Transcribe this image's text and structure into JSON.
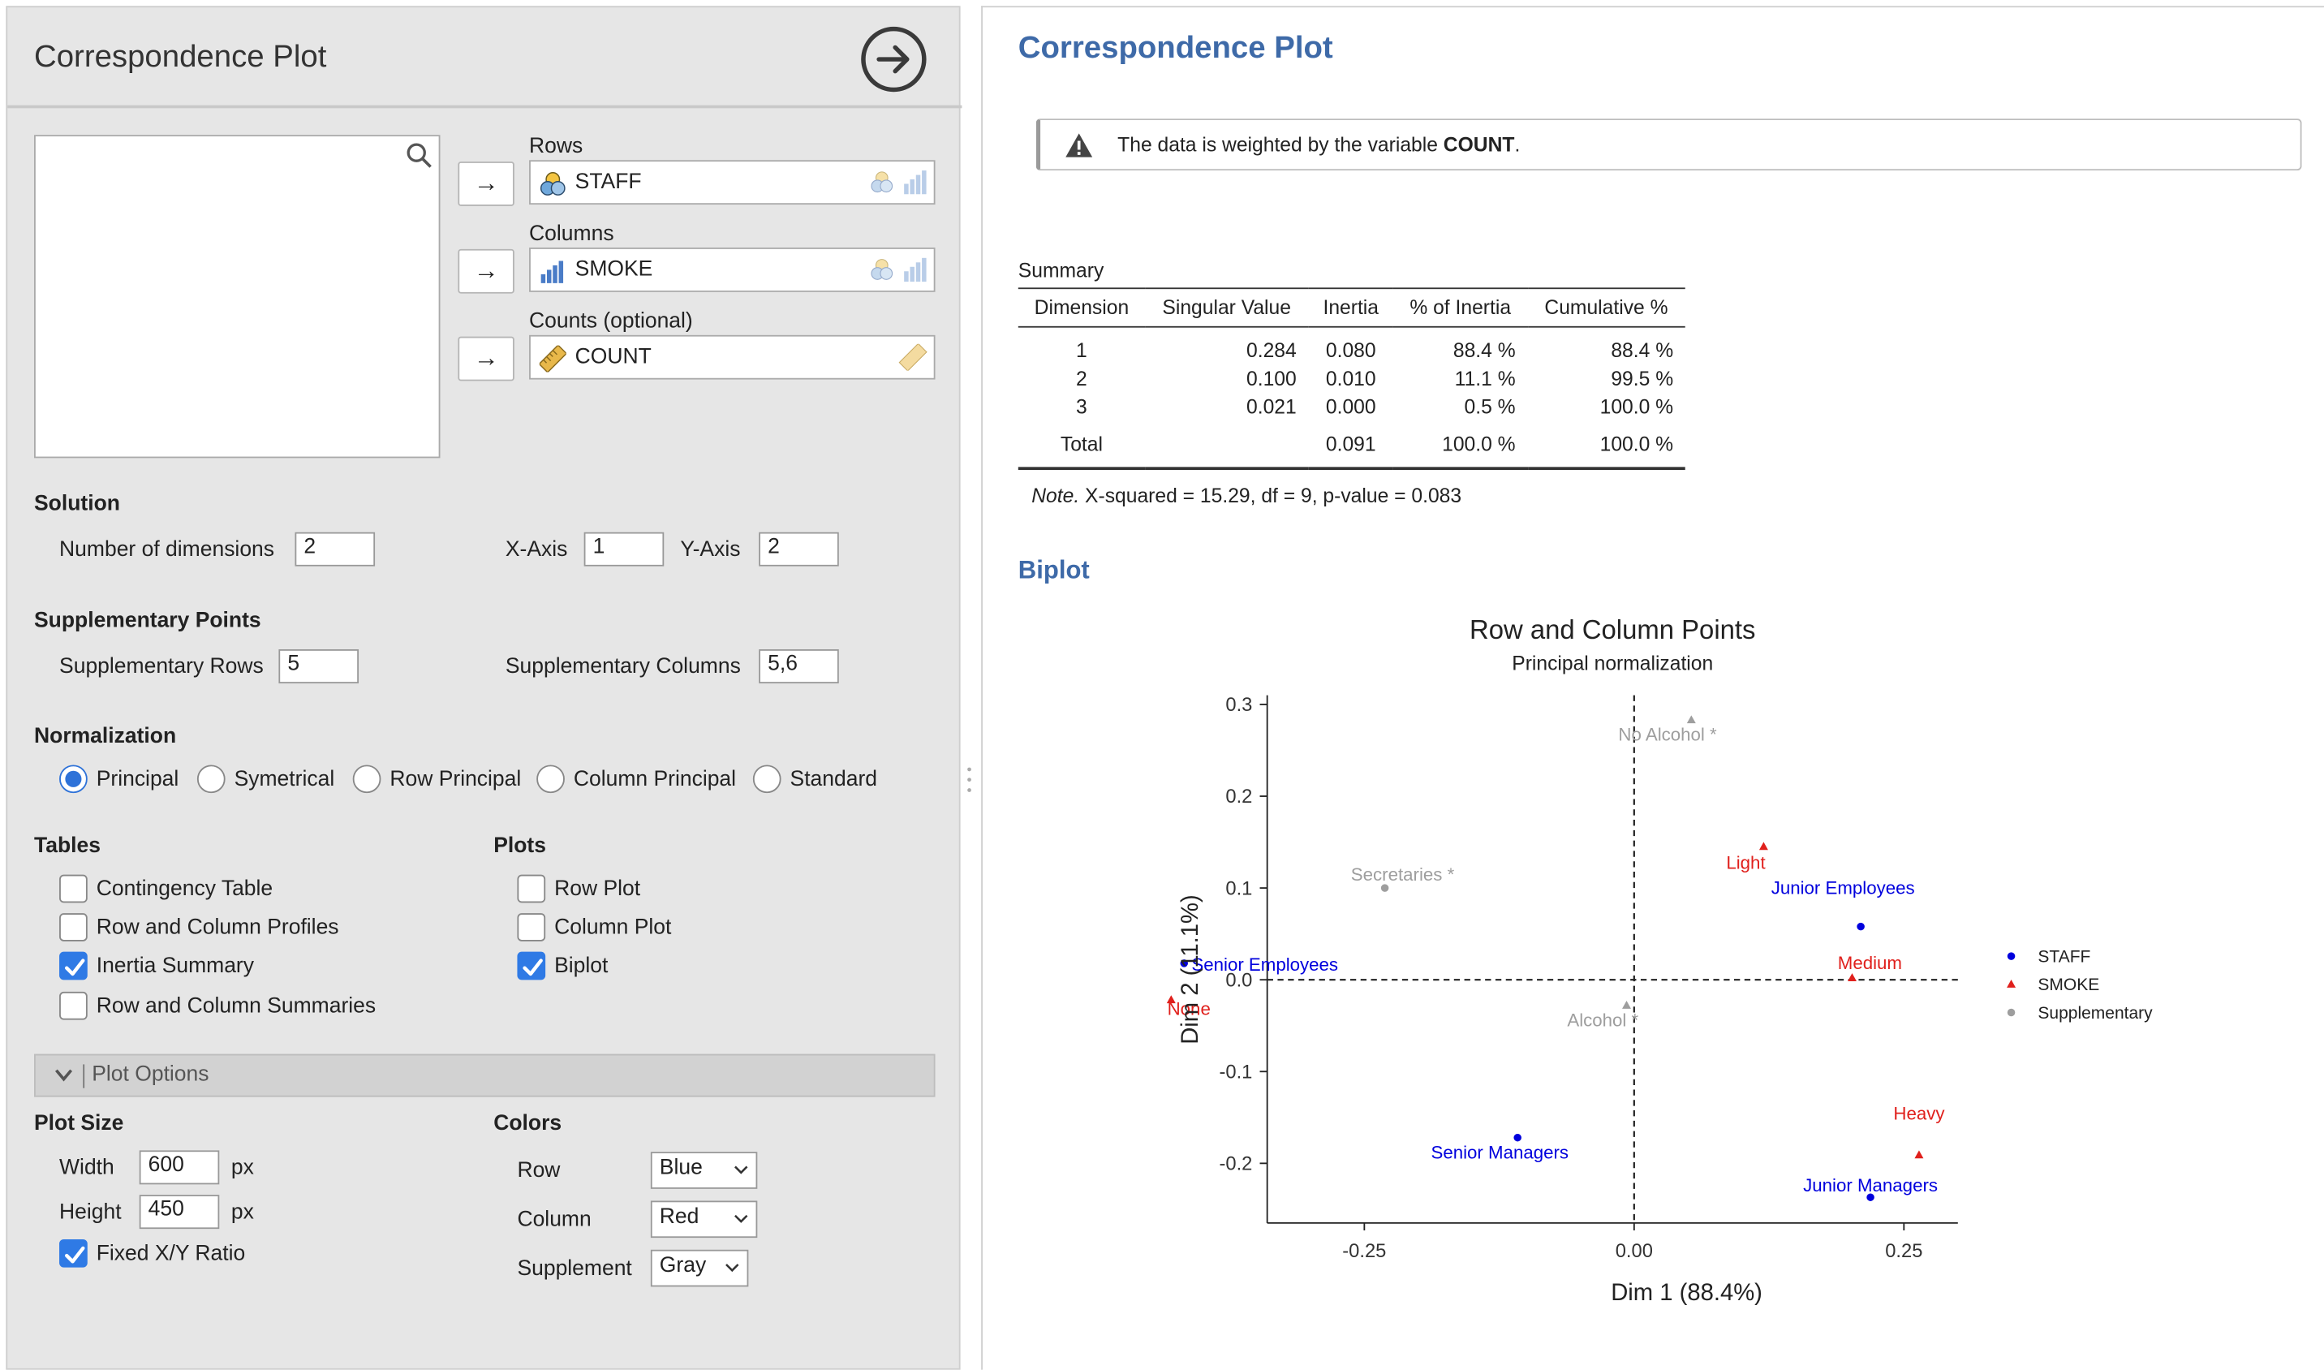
{
  "left_panel": {
    "title": "Correspondence Plot",
    "rows_label": "Rows",
    "rows_value": "STAFF",
    "columns_label": "Columns",
    "columns_value": "SMOKE",
    "counts_label": "Counts (optional)",
    "counts_value": "COUNT",
    "solution": {
      "heading": "Solution",
      "num_dims_label": "Number of dimensions",
      "num_dims_value": "2",
      "xaxis_label": "X-Axis",
      "xaxis_value": "1",
      "yaxis_label": "Y-Axis",
      "yaxis_value": "2"
    },
    "supplementary": {
      "heading": "Supplementary Points",
      "rows_label": "Supplementary Rows",
      "rows_value": "5",
      "cols_label": "Supplementary Columns",
      "cols_value": "5,6"
    },
    "normalization": {
      "heading": "Normalization",
      "options": [
        "Principal",
        "Symetrical",
        "Row Principal",
        "Column Principal",
        "Standard"
      ],
      "selected": "Principal"
    },
    "tables": {
      "heading": "Tables",
      "items": [
        {
          "label": "Contingency Table",
          "checked": false
        },
        {
          "label": "Row and Column Profiles",
          "checked": false
        },
        {
          "label": "Inertia Summary",
          "checked": true
        },
        {
          "label": "Row and Column Summaries",
          "checked": false
        }
      ]
    },
    "plots": {
      "heading": "Plots",
      "items": [
        {
          "label": "Row Plot",
          "checked": false
        },
        {
          "label": "Column Plot",
          "checked": false
        },
        {
          "label": "Biplot",
          "checked": true
        }
      ]
    },
    "plot_options": {
      "header": "Plot Options",
      "size_heading": "Plot Size",
      "width_label": "Width",
      "width_value": "600",
      "height_label": "Height",
      "height_value": "450",
      "unit": "px",
      "fixed_ratio_label": "Fixed X/Y Ratio",
      "fixed_ratio_checked": true,
      "colors_heading": "Colors",
      "row_label": "Row",
      "row_value": "Blue",
      "column_label": "Column",
      "column_value": "Red",
      "supplement_label": "Supplement",
      "supplement_value": "Gray"
    }
  },
  "results": {
    "title": "Correspondence Plot",
    "notice_prefix": "The data is weighted by the variable ",
    "notice_var": "COUNT",
    "notice_suffix": ".",
    "summary": {
      "caption": "Summary",
      "headers": [
        "Dimension",
        "Singular Value",
        "Inertia",
        "% of Inertia",
        "Cumulative %"
      ],
      "rows": [
        [
          "1",
          "0.284",
          "0.080",
          "88.4 %",
          "88.4 %"
        ],
        [
          "2",
          "0.100",
          "0.010",
          "11.1 %",
          "99.5 %"
        ],
        [
          "3",
          "0.021",
          "0.000",
          "0.5 %",
          "100.0 %"
        ]
      ],
      "total": [
        "Total",
        "",
        "0.091",
        "100.0 %",
        "100.0 %"
      ],
      "note_label": "Note.",
      "note_text": " X-squared = 15.29, df = 9, p-value = 0.083"
    },
    "biplot_heading": "Biplot"
  },
  "chart_data": {
    "type": "scatter",
    "title": "Row and Column Points",
    "subtitle": "Principal normalization",
    "xlabel": "Dim 1 (88.4%)",
    "ylabel": "Dim 2 (11.1%)",
    "xlim": [
      -0.34,
      0.3
    ],
    "ylim": [
      -0.265,
      0.31
    ],
    "xticks": [
      -0.25,
      0.0,
      0.25
    ],
    "xtick_labels": [
      "-0.25",
      "0.00",
      "0.25"
    ],
    "yticks": [
      0.3,
      0.2,
      0.1,
      0.0,
      -0.1,
      -0.2
    ],
    "ytick_labels": [
      "0.3",
      "0.2",
      "0.1",
      "0.0",
      "-0.1",
      "-0.2"
    ],
    "reference_lines": {
      "x": 0,
      "y": 0
    },
    "colors": {
      "STAFF": "#0000dd",
      "SMOKE": "#e0201c",
      "Supplementary": "#9e9e9e"
    },
    "series": [
      {
        "name": "STAFF",
        "marker": "circle",
        "points": [
          {
            "label": "Senior Managers",
            "x": -0.108,
            "y": -0.172
          },
          {
            "label": "Junior Managers",
            "x": 0.219,
            "y": -0.237
          },
          {
            "label": "Senior Employees",
            "x": -0.417,
            "y": 0.018
          },
          {
            "label": "Junior Employees",
            "x": 0.21,
            "y": 0.058
          }
        ]
      },
      {
        "name": "SMOKE",
        "marker": "triangle",
        "points": [
          {
            "label": "None",
            "x": -0.429,
            "y": -0.022
          },
          {
            "label": "Light",
            "x": 0.12,
            "y": 0.145
          },
          {
            "label": "Medium",
            "x": 0.202,
            "y": 0.002
          },
          {
            "label": "Heavy",
            "x": 0.264,
            "y": -0.191
          }
        ]
      },
      {
        "name": "Supplementary",
        "marker": "mixed",
        "points": [
          {
            "label": "Secretaries *",
            "x": -0.231,
            "y": 0.1,
            "marker": "circle"
          },
          {
            "label": "No Alcohol *",
            "x": 0.053,
            "y": 0.283,
            "marker": "triangle"
          },
          {
            "label": "Alcohol *",
            "x": -0.007,
            "y": -0.028,
            "marker": "triangle"
          }
        ]
      }
    ],
    "legend": {
      "position": "right",
      "entries": [
        "STAFF",
        "SMOKE",
        "Supplementary"
      ]
    }
  }
}
